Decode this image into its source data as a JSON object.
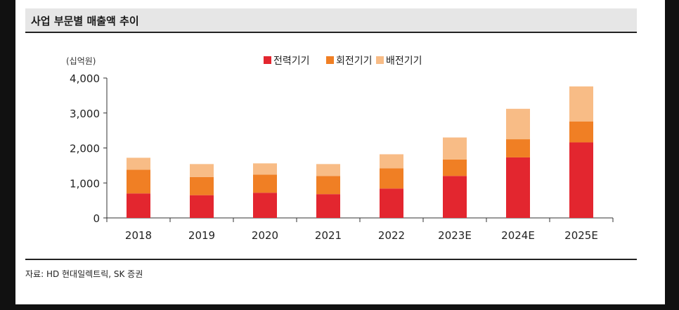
{
  "title": "사업 부문별 매출액 추이",
  "source": "자료: HD 현대일렉트릭, SK 증권",
  "colors": {
    "series": [
      "#e3262f",
      "#f07f24",
      "#f8bc86"
    ],
    "axis": "#333333",
    "background": "#ffffff"
  },
  "chart_data": {
    "type": "bar",
    "stacked": true,
    "unit_label": "(십억원)",
    "categories": [
      "2018",
      "2019",
      "2020",
      "2021",
      "2022",
      "2023E",
      "2024E",
      "2025E"
    ],
    "series": [
      {
        "name": "전력기기",
        "values": [
          700,
          650,
          720,
          680,
          840,
          1200,
          1730,
          2160
        ]
      },
      {
        "name": "회전기기",
        "values": [
          680,
          520,
          520,
          520,
          580,
          470,
          520,
          600
        ]
      },
      {
        "name": "배전기기",
        "values": [
          340,
          370,
          320,
          340,
          400,
          630,
          870,
          1000
        ]
      }
    ],
    "ylim": [
      0,
      4000
    ],
    "yticks": [
      0,
      1000,
      2000,
      3000,
      4000
    ],
    "ytick_labels": [
      "0",
      "1,000",
      "2,000",
      "3,000",
      "4,000"
    ],
    "legend_position": "top",
    "grid": false
  }
}
